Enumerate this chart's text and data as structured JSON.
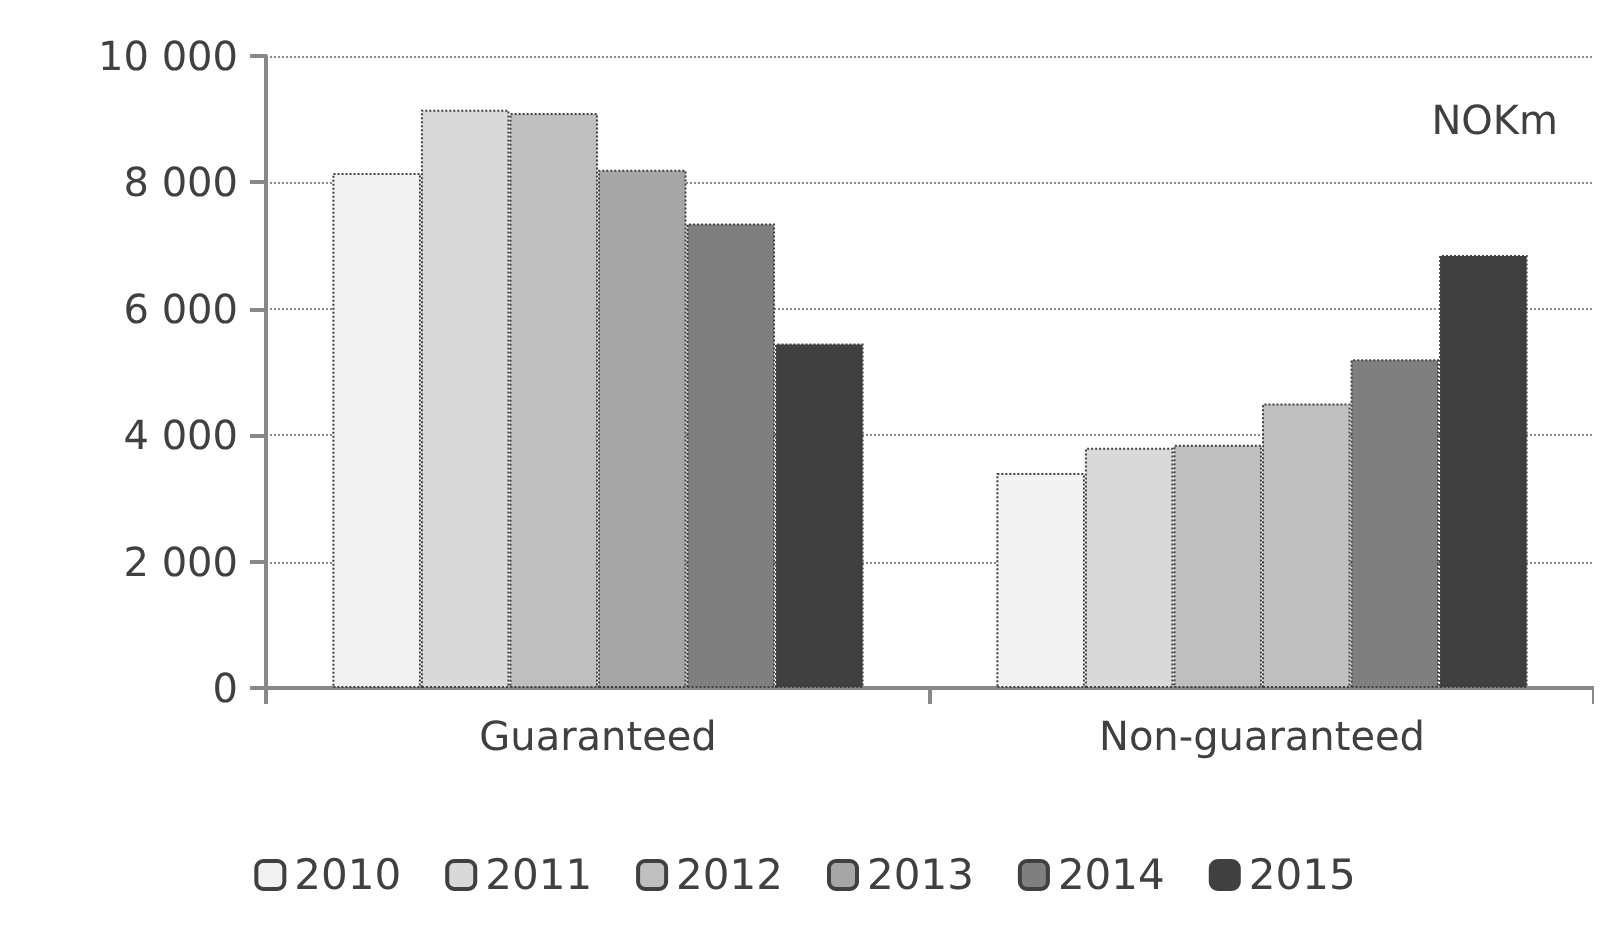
{
  "chart_data": {
    "type": "bar",
    "categories": [
      "Guaranteed",
      "Non-guaranteed"
    ],
    "series": [
      {
        "name": "2010",
        "color": "#f2f2f2",
        "values": [
          8150,
          3400
        ]
      },
      {
        "name": "2011",
        "color": "#d9d9d9",
        "values": [
          9150,
          3800
        ]
      },
      {
        "name": "2012",
        "color": "#bfbfbf",
        "values": [
          9100,
          3850
        ]
      },
      {
        "name": "2013",
        "color": "#a6a6a6",
        "colors": [
          "#a6a6a6",
          "#bfbfbf"
        ],
        "values": [
          8200,
          4500
        ]
      },
      {
        "name": "2014",
        "color": "#7f7f7f",
        "values": [
          7350,
          5200
        ]
      },
      {
        "name": "2015",
        "color": "#404040",
        "values": [
          5450,
          6850
        ]
      }
    ],
    "ylim": [
      0,
      10000
    ],
    "yticks": [
      0,
      {
        "value": 2000,
        "label": "2 000"
      },
      {
        "value": 4000,
        "label": "4 000"
      },
      {
        "value": 6000,
        "label": "6 000"
      },
      {
        "value": 8000,
        "label": "8 000"
      },
      {
        "value": 10000,
        "label": "10 000"
      }
    ],
    "grid": "y",
    "legend": "bottom",
    "annotations": [
      "NOKm"
    ]
  }
}
